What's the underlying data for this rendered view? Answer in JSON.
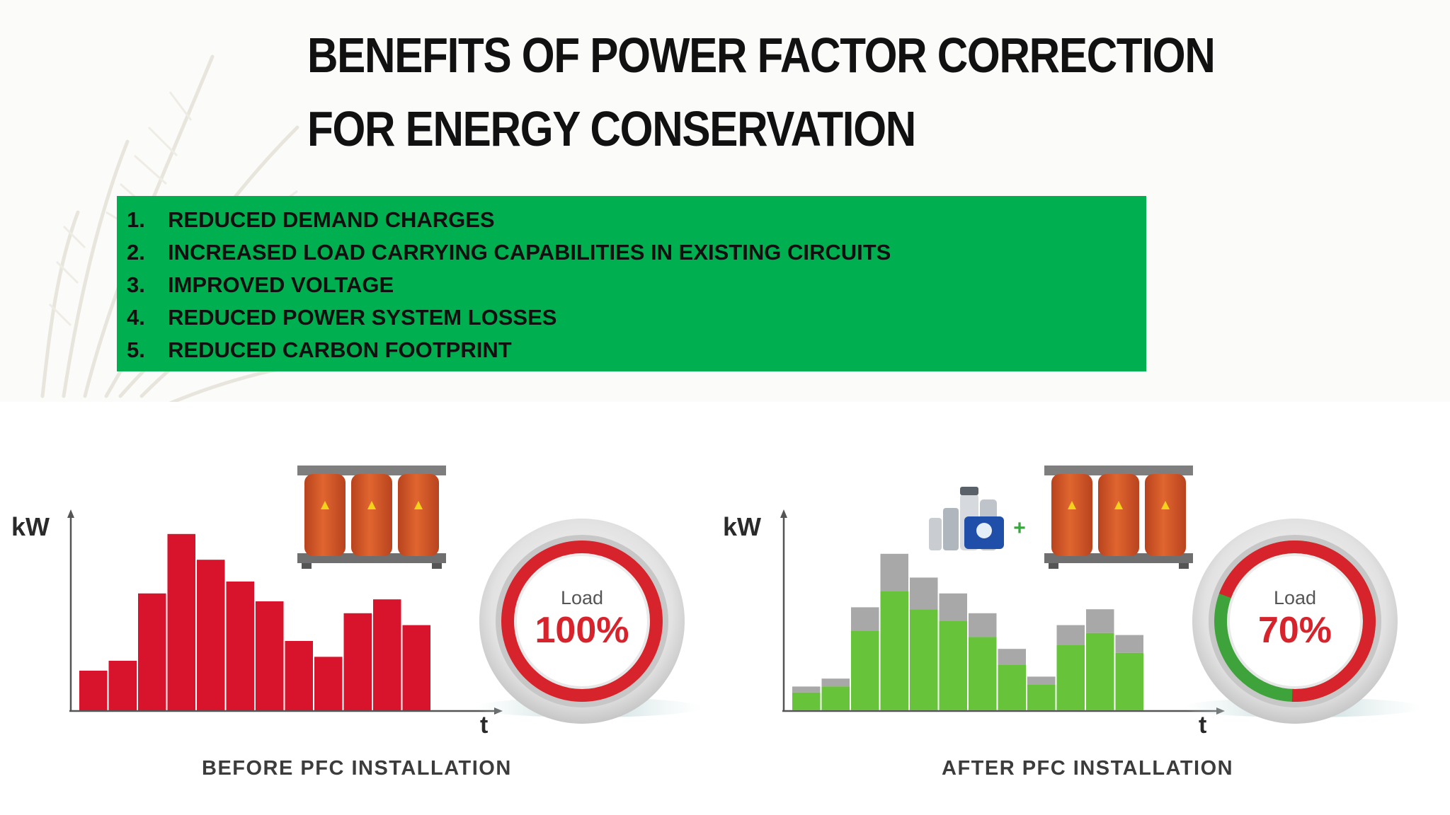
{
  "title": {
    "line1": "BENEFITS OF POWER FACTOR CORRECTION",
    "line2": "FOR ENERGY CONSERVATION"
  },
  "benefits": [
    {
      "num": "1.",
      "text": "REDUCED DEMAND CHARGES"
    },
    {
      "num": "2.",
      "text": "INCREASED LOAD CARRYING CAPABILITIES IN EXISTING CIRCUITS"
    },
    {
      "num": "3.",
      "text": "IMPROVED VOLTAGE"
    },
    {
      "num": "4.",
      "text": "REDUCED POWER SYSTEM LOSSES"
    },
    {
      "num": "5.",
      "text": "REDUCED CARBON FOOTPRINT"
    }
  ],
  "colors": {
    "benefit_bg": "#00b050",
    "before_bar": "#d7142b",
    "after_bar": "#66c33a",
    "after_excess": "#a8a8a8",
    "gauge_red": "#d7232b",
    "gauge_green": "#3da33a",
    "transformer": "#d2532a"
  },
  "before": {
    "y_label": "kW",
    "x_label": "t",
    "caption": "BEFORE PFC INSTALLATION",
    "load_label": "Load",
    "load_value": "100%",
    "load_fraction": 1.0,
    "bars": [
      20,
      25,
      59,
      89,
      76,
      65,
      55,
      35,
      27,
      49,
      56,
      43
    ]
  },
  "after": {
    "y_label": "kW",
    "x_label": "t",
    "caption": "AFTER PFC INSTALLATION",
    "plus_sign": "+",
    "load_label": "Load",
    "load_value": "70%",
    "load_fraction": 0.7,
    "bars_total": [
      12,
      16,
      52,
      79,
      67,
      59,
      49,
      31,
      17,
      43,
      51,
      38
    ],
    "bars_green": [
      9,
      12,
      40,
      60,
      51,
      45,
      37,
      23,
      13,
      33,
      39,
      29
    ]
  }
}
